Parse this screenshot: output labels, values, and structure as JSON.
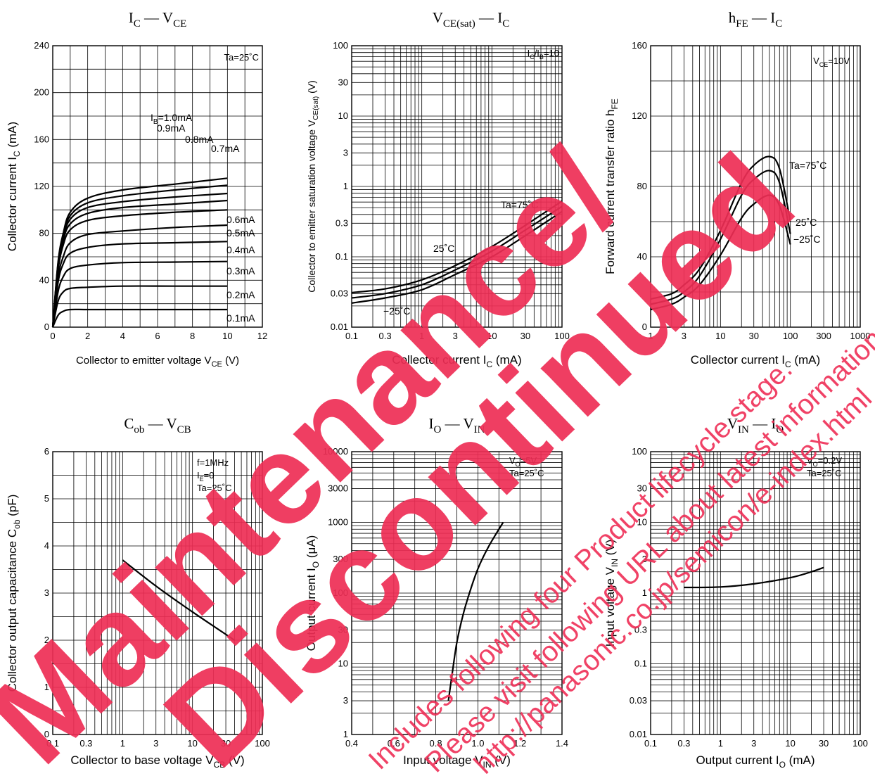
{
  "chart_data": [
    {
      "type": "line",
      "title": "I_C — V_CE",
      "xlabel": "Collector to emitter voltage  V_CE   (V)",
      "ylabel": "Collector current   I_C   (mA)",
      "xscale": "linear",
      "yscale": "linear",
      "xlim": [
        0,
        12
      ],
      "ylim": [
        0,
        240
      ],
      "xticks": [
        0,
        2,
        4,
        6,
        8,
        10,
        12
      ],
      "yticks": [
        0,
        40,
        80,
        120,
        160,
        200,
        240
      ],
      "grid": true,
      "condition": "Ta=25˚C",
      "series": [
        {
          "name": "I_B=1.0mA",
          "x": [
            0,
            0.3,
            0.6,
            1,
            2,
            4,
            7,
            10
          ],
          "y": [
            0,
            55,
            80,
            98,
            110,
            117,
            122,
            127
          ]
        },
        {
          "name": "0.9mA",
          "x": [
            0,
            0.3,
            0.6,
            1,
            2,
            4,
            7,
            10
          ],
          "y": [
            0,
            54,
            78,
            95,
            106,
            112,
            117,
            121
          ]
        },
        {
          "name": "0.8mA",
          "x": [
            0,
            0.3,
            0.6,
            1,
            2,
            4,
            7,
            10
          ],
          "y": [
            0,
            52,
            76,
            92,
            102,
            107,
            111,
            114
          ]
        },
        {
          "name": "0.7mA",
          "x": [
            0,
            0.3,
            0.6,
            1,
            2,
            4,
            7,
            10
          ],
          "y": [
            0,
            50,
            74,
            88,
            97,
            102,
            105,
            108
          ]
        },
        {
          "name": "0.6mA",
          "x": [
            0,
            0.3,
            0.6,
            1,
            2,
            4,
            7,
            10
          ],
          "y": [
            0,
            48,
            70,
            83,
            91,
            95,
            98,
            100
          ]
        },
        {
          "name": "0.5mA",
          "x": [
            0,
            0.3,
            0.6,
            1,
            2,
            4,
            7,
            10
          ],
          "y": [
            0,
            42,
            60,
            72,
            79,
            82,
            85,
            87
          ]
        },
        {
          "name": "0.4mA",
          "x": [
            0,
            0.3,
            0.6,
            1,
            2,
            4,
            7,
            10
          ],
          "y": [
            0,
            38,
            54,
            63,
            68,
            71,
            72,
            73
          ]
        },
        {
          "name": "0.3mA",
          "x": [
            0,
            0.3,
            0.6,
            1,
            2,
            4,
            7,
            10
          ],
          "y": [
            0,
            30,
            43,
            50,
            53,
            55,
            55.5,
            56
          ]
        },
        {
          "name": "0.2mA",
          "x": [
            0,
            0.3,
            0.6,
            1,
            2,
            4,
            7,
            10
          ],
          "y": [
            0,
            22,
            30,
            33,
            34,
            35,
            35,
            35
          ]
        },
        {
          "name": "0.1mA",
          "x": [
            0,
            0.3,
            0.6,
            1,
            2,
            4,
            7,
            10
          ],
          "y": [
            0,
            10,
            13.5,
            15,
            15,
            15,
            15,
            15
          ]
        }
      ]
    },
    {
      "type": "line",
      "title": "V_CE(sat) — I_C",
      "xlabel": "Collector current   I_C   (mA)",
      "ylabel": "Collector to emitter saturation voltage  V_CE(sat)   (V)",
      "xscale": "log",
      "yscale": "log",
      "xlim": [
        0.1,
        100
      ],
      "ylim": [
        0.01,
        100
      ],
      "xticks": [
        0.1,
        0.3,
        1,
        3,
        10,
        30,
        100
      ],
      "yticks": [
        0.01,
        0.03,
        0.1,
        0.3,
        1,
        3,
        10,
        30,
        100
      ],
      "grid": true,
      "condition": "I_C/I_B=10",
      "series": [
        {
          "name": "Ta=75˚C",
          "x": [
            0.1,
            0.3,
            1,
            3,
            10,
            30,
            100
          ],
          "y": [
            0.031,
            0.035,
            0.047,
            0.075,
            0.14,
            0.28,
            0.62
          ]
        },
        {
          "name": "25˚C",
          "x": [
            0.1,
            0.3,
            1,
            3,
            10,
            30,
            100
          ],
          "y": [
            0.026,
            0.03,
            0.04,
            0.065,
            0.12,
            0.24,
            0.52
          ]
        },
        {
          "name": "−25˚C",
          "x": [
            0.1,
            0.3,
            1,
            3,
            10,
            30,
            100
          ],
          "y": [
            0.022,
            0.026,
            0.034,
            0.056,
            0.1,
            0.2,
            0.44
          ]
        }
      ]
    },
    {
      "type": "line",
      "title": "h_FE — I_C",
      "xlabel": "Collector current    I_C   (mA)",
      "ylabel": "Forward current transfer ratio   h_FE",
      "xscale": "log",
      "yscale": "linear",
      "xlim": [
        1,
        1000
      ],
      "ylim": [
        0,
        160
      ],
      "xticks": [
        1,
        3,
        10,
        30,
        100,
        300,
        1000
      ],
      "yticks": [
        0,
        40,
        80,
        120,
        160
      ],
      "grid": true,
      "condition": "V_CE=10V",
      "series": [
        {
          "name": "Ta=75˚C",
          "x": [
            1,
            2,
            3,
            5,
            10,
            20,
            30,
            50,
            70,
            100
          ],
          "y": [
            16,
            19,
            24,
            33,
            55,
            82,
            92,
            97,
            90,
            60
          ]
        },
        {
          "name": "25˚C",
          "x": [
            1,
            2,
            3,
            5,
            10,
            20,
            30,
            50,
            70,
            100
          ],
          "y": [
            13,
            16,
            20,
            29,
            50,
            75,
            84,
            89,
            82,
            53
          ]
        },
        {
          "name": "−25˚C",
          "x": [
            1,
            2,
            3,
            5,
            10,
            20,
            30,
            50,
            70,
            100
          ],
          "y": [
            10,
            13,
            17,
            24,
            41,
            62,
            70,
            75,
            69,
            47
          ]
        }
      ]
    },
    {
      "type": "line",
      "title": "C_ob — V_CB",
      "xlabel": "Collector to base voltage    V_CB   (V)",
      "ylabel": "Collector output capacitance    C_ob   (pF)",
      "xscale": "log",
      "yscale": "linear",
      "xlim": [
        0.1,
        100
      ],
      "ylim": [
        0,
        6
      ],
      "xticks": [
        0.1,
        0.3,
        1,
        3,
        10,
        30,
        100
      ],
      "yticks": [
        0,
        1,
        2,
        3,
        4,
        5,
        6
      ],
      "grid": true,
      "condition": [
        "f=1MHz",
        "I_E=0",
        "Ta=25˚C"
      ],
      "series": [
        {
          "name": "C_ob",
          "x": [
            1,
            3,
            10,
            40
          ],
          "y": [
            3.7,
            3.15,
            2.6,
            2.0
          ]
        }
      ]
    },
    {
      "type": "line",
      "title": "I_O — V_IN",
      "xlabel": "Input voltage    V_IN   (V)",
      "ylabel": "Output current   I_O   (μA)",
      "xscale": "linear",
      "yscale": "log",
      "xlim": [
        0.4,
        1.4
      ],
      "ylim": [
        1,
        10000
      ],
      "xticks": [
        0.4,
        0.6,
        0.8,
        1.0,
        1.2,
        1.4
      ],
      "yticks": [
        1,
        3,
        10,
        30,
        100,
        300,
        1000,
        3000,
        10000
      ],
      "grid": true,
      "condition": [
        "V_O=5V",
        "Ta=25˚C"
      ],
      "series": [
        {
          "name": "I_O",
          "x": [
            0.86,
            0.88,
            0.9,
            0.93,
            0.96,
            1.0,
            1.05,
            1.12
          ],
          "y": [
            3,
            8,
            20,
            50,
            100,
            220,
            450,
            1000
          ]
        }
      ]
    },
    {
      "type": "line",
      "title": "V_IN — I_O",
      "xlabel": "Output current    I_O   (mA)",
      "ylabel": "Input voltage    V_IN   (V)",
      "xscale": "log",
      "yscale": "log",
      "xlim": [
        0.1,
        100
      ],
      "ylim": [
        0.01,
        100
      ],
      "xticks": [
        0.1,
        0.3,
        1,
        3,
        10,
        30,
        100
      ],
      "yticks": [
        0.01,
        0.03,
        0.1,
        0.3,
        1,
        3,
        10,
        30,
        100
      ],
      "grid": true,
      "condition": [
        "V_O=0.2V",
        "Ta=25˚C"
      ],
      "series": [
        {
          "name": "V_IN",
          "x": [
            0.3,
            1,
            3,
            10,
            20,
            30
          ],
          "y": [
            1.2,
            1.22,
            1.35,
            1.65,
            2.0,
            2.3
          ]
        }
      ]
    }
  ],
  "watermark": {
    "line1": "Maintenance/",
    "line2": "Discontinued",
    "note1": "Includes following four Product lifecycle stage.",
    "note2": "Please visit following URL about latest information.",
    "url": "http://panasonic.co.jp/semicon/e-index.html",
    "color": "#ee2e55"
  }
}
